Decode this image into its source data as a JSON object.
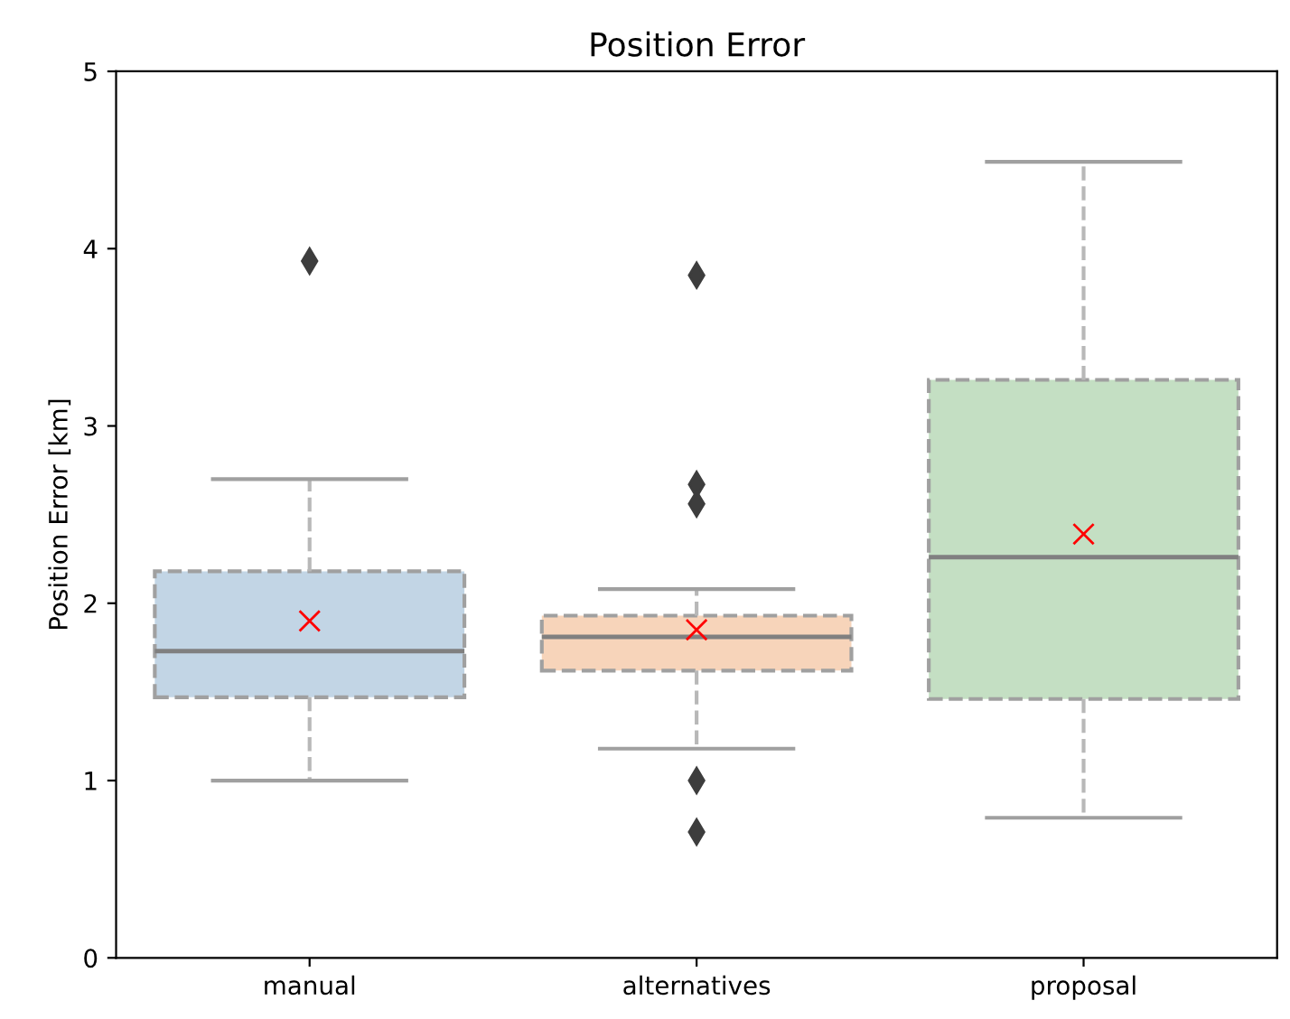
{
  "chart_data": {
    "type": "box",
    "title": "Position Error",
    "ylabel": "Position Error [km]",
    "categories": [
      "manual",
      "alternatives",
      "proposal"
    ],
    "colors": [
      "#c2d5e5",
      "#f7d4ba",
      "#c4dfc3"
    ],
    "boxes": [
      {
        "low": 1.0,
        "q1": 1.47,
        "median": 1.73,
        "q3": 2.18,
        "high": 2.7,
        "mean": 1.9,
        "outliers": [
          3.93
        ]
      },
      {
        "low": 1.18,
        "q1": 1.62,
        "median": 1.81,
        "q3": 1.93,
        "high": 2.08,
        "mean": 1.85,
        "outliers": [
          3.85,
          2.67,
          2.56,
          1.0,
          0.71
        ]
      },
      {
        "low": 0.79,
        "q1": 1.46,
        "median": 2.26,
        "q3": 3.26,
        "high": 4.49,
        "mean": 2.39
      }
    ],
    "ylim": [
      0,
      5
    ],
    "yticks": [
      0,
      1,
      2,
      3,
      4,
      5
    ],
    "grid": false,
    "line_style": "dashed"
  }
}
